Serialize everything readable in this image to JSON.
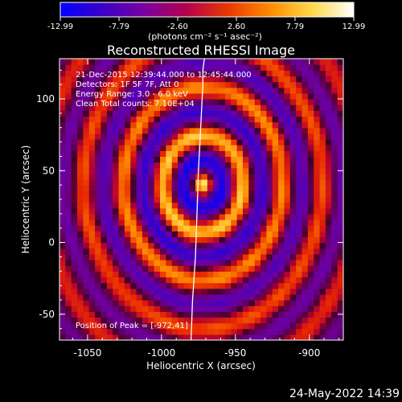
{
  "colorbar": {
    "tick_labels": [
      "-12.99",
      "-7.79",
      "-2.60",
      "2.60",
      "7.79",
      "12.99"
    ],
    "range": [
      -12.99,
      12.99
    ],
    "units_label": "(photons cm⁻² s⁻¹ asec⁻²)",
    "colors": [
      "#0000ff",
      "#3a00c8",
      "#7a00a0",
      "#b4004e",
      "#e83800",
      "#ff8a00",
      "#ffd84a",
      "#ffffff"
    ]
  },
  "chart_data": {
    "type": "heatmap",
    "title": "Reconstructed RHESSI Image",
    "xlabel": "Heliocentric X (arcsec)",
    "ylabel": "Heliocentric Y (arcsec)",
    "xlim": [
      -1069,
      -877
    ],
    "ylim": [
      -68,
      128
    ],
    "x_ticks": [
      -1050,
      -1000,
      -950,
      -900
    ],
    "y_ticks": [
      -50,
      0,
      50,
      100
    ],
    "annotations": [
      "21-Dec-2015 12:39:44.000 to 12:45:44.000",
      "Detectors: 1F 5F 7F, Att 0",
      "Energy Range: 3.0 - 6.0 keV",
      "Clean    Total counts: 7.10E+04"
    ],
    "peak_label": "Position of Peak = [-972,41]",
    "peak": {
      "x": -972,
      "y": 41,
      "value": 12.99
    },
    "limb_curve": {
      "x": [
        -980,
        -979,
        -977,
        -976,
        -975,
        -974,
        -973,
        -972,
        -972,
        -971
      ],
      "y": [
        -68,
        -40,
        -10,
        20,
        50,
        70,
        90,
        110,
        120,
        128
      ]
    }
  },
  "footer": {
    "timestamp": "24-May-2022 14:39"
  }
}
